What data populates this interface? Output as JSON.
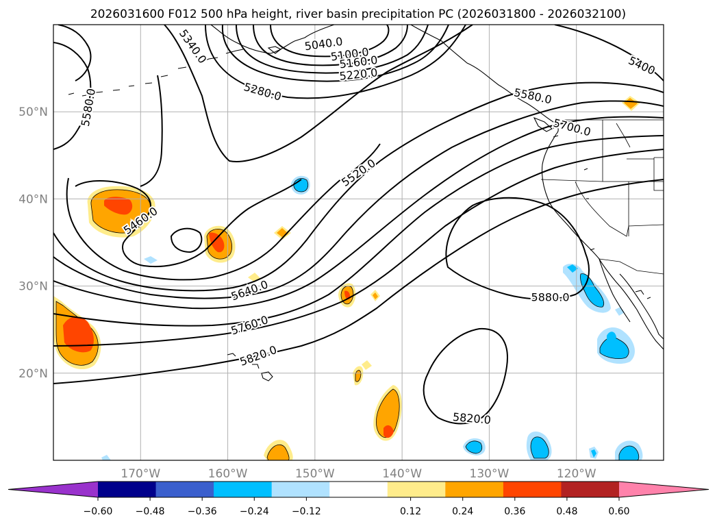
{
  "title": "2026031600 F012 500 hPa height, river basin precipitation PC (2026031800 - 2026032100)",
  "map": {
    "lon_range": [
      -180,
      -110
    ],
    "lat_range": [
      10,
      60
    ],
    "lat_ticks": [
      {
        "value": 50,
        "label": "50°N"
      },
      {
        "value": 40,
        "label": "40°N"
      },
      {
        "value": 30,
        "label": "30°N"
      },
      {
        "value": 20,
        "label": "20°N"
      }
    ],
    "lon_ticks": [
      {
        "value": -170,
        "label": "170°W"
      },
      {
        "value": -160,
        "label": "160°W"
      },
      {
        "value": -150,
        "label": "150°W"
      },
      {
        "value": -140,
        "label": "140°W"
      },
      {
        "value": -130,
        "label": "130°W"
      },
      {
        "value": -120,
        "label": "120°W"
      }
    ],
    "grid": true
  },
  "height_contours": {
    "labels": [
      {
        "text": "5040.0",
        "lon": -149,
        "lat": 57.8,
        "rot": -8
      },
      {
        "text": "5100.0",
        "lon": -146,
        "lat": 56.6,
        "rot": -8
      },
      {
        "text": "5160.0",
        "lon": -145,
        "lat": 55.7,
        "rot": -7
      },
      {
        "text": "5220.0",
        "lon": -145,
        "lat": 54.3,
        "rot": -6
      },
      {
        "text": "5280.0",
        "lon": -156,
        "lat": 52.3,
        "rot": 16
      },
      {
        "text": "5340.0",
        "lon": -164,
        "lat": 57.5,
        "rot": 55
      },
      {
        "text": "5400",
        "lon": -112.5,
        "lat": 55.3,
        "rot": 25
      },
      {
        "text": "5460.0",
        "lon": -170,
        "lat": 37.5,
        "rot": -35
      },
      {
        "text": "5520.0",
        "lon": -145,
        "lat": 43,
        "rot": -35
      },
      {
        "text": "5580.0",
        "lon": -176,
        "lat": 50.5,
        "rot": -80
      },
      {
        "text": "5580.0",
        "lon": -125,
        "lat": 51.8,
        "rot": 12
      },
      {
        "text": "5640.0",
        "lon": -157.5,
        "lat": 29.5,
        "rot": -20
      },
      {
        "text": "5700.0",
        "lon": -120.5,
        "lat": 48.2,
        "rot": 15
      },
      {
        "text": "5760.0",
        "lon": -157.5,
        "lat": 25.5,
        "rot": -18
      },
      {
        "text": "5820.0",
        "lon": -156.5,
        "lat": 22,
        "rot": -20
      },
      {
        "text": "5820.0",
        "lon": -132,
        "lat": 14.8,
        "rot": 5
      },
      {
        "text": "5880.0",
        "lon": -123,
        "lat": 28.7,
        "rot": 0
      }
    ]
  },
  "colorbar": {
    "colors": [
      "#9932cc",
      "#00008b",
      "#3a5fcd",
      "#00bfff",
      "#b0e2ff",
      "#ffffff",
      "#ffec8b",
      "#ffa500",
      "#ff4500",
      "#b22222",
      "#ff82ab"
    ],
    "tick_values": [
      -0.6,
      -0.48,
      -0.36,
      -0.24,
      -0.12,
      0.12,
      0.24,
      0.36,
      0.48,
      0.6
    ],
    "tick_labels": [
      "−0.60",
      "−0.48",
      "−0.36",
      "−0.24",
      "−0.12",
      "0.12",
      "0.24",
      "0.36",
      "0.48",
      "0.60"
    ]
  }
}
